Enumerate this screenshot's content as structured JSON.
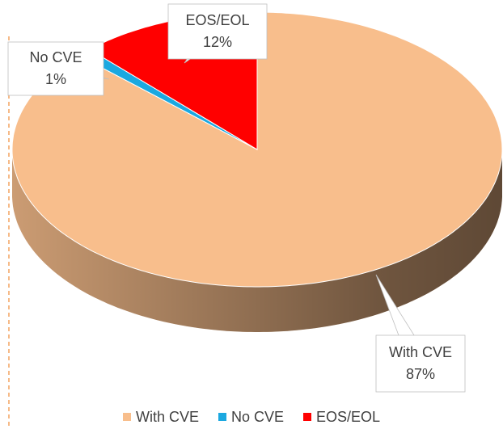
{
  "chart_data": {
    "type": "pie3d",
    "categories": [
      "With CVE",
      "No CVE",
      "EOS/EOL"
    ],
    "values": [
      87,
      1,
      12
    ],
    "value_labels": [
      "87%",
      "1%",
      "12%"
    ],
    "colors": [
      "#f8be8c",
      "#1ba8e0",
      "#ff0000"
    ],
    "legend": "bottom"
  }
}
